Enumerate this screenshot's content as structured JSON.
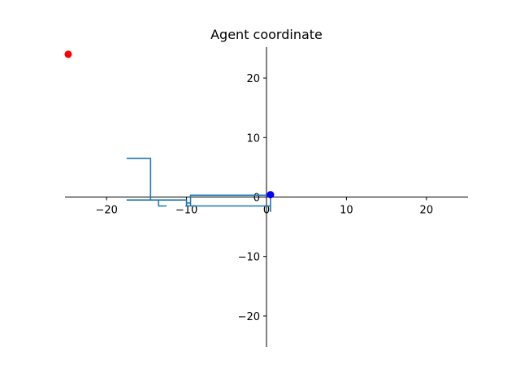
{
  "chart_data": {
    "type": "line",
    "title": "Agent coordinate",
    "xlabel": "",
    "ylabel": "",
    "xlim": [
      -25.2,
      25.2
    ],
    "ylim": [
      -25.2,
      25.2
    ],
    "grid": false,
    "legend": "none",
    "x_ticks": [
      -20,
      -10,
      0,
      10,
      20
    ],
    "y_ticks": [
      -20,
      -10,
      0,
      10,
      20
    ],
    "x_tick_labels": [
      "−20",
      "−10",
      "0",
      "10",
      "20"
    ],
    "y_tick_labels": [
      "−20",
      "−10",
      "0",
      "10",
      "20"
    ],
    "series": [
      {
        "type": "line",
        "color": "#1f77b4",
        "x": [
          -17.5,
          -14.5,
          -14.5,
          -17.5,
          -10.0,
          -10.0,
          -9.5,
          -9.5,
          0.5,
          0.5,
          0.5,
          -9.5,
          -9.5,
          -10.0,
          -10.0,
          -13.5,
          -13.5,
          -12.5
        ],
        "y": [
          6.5,
          6.5,
          -0.5,
          -0.5,
          -0.5,
          -1.0,
          -1.0,
          -1.5,
          -1.5,
          -2.5,
          0.3,
          0.3,
          -1.5,
          -1.5,
          -0.5,
          -0.5,
          -1.5,
          -1.5
        ]
      },
      {
        "type": "scatter",
        "color": "#0000ff",
        "x": [
          0.5
        ],
        "y": [
          0.4
        ]
      },
      {
        "type": "scatter",
        "color": "#ff0000",
        "x": [
          -24.8
        ],
        "y": [
          24.0
        ]
      }
    ]
  }
}
